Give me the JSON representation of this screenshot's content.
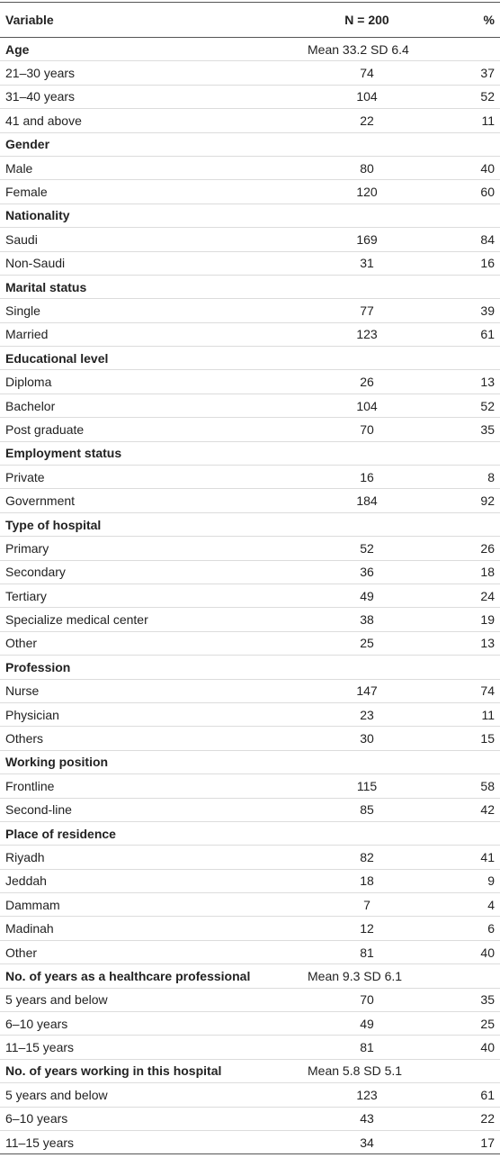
{
  "table": {
    "header": [
      "Variable",
      "N = 200",
      "%"
    ],
    "groups": [
      {
        "label": "Age",
        "summary": "Mean 33.2 SD 6.4",
        "rows": [
          [
            "21–30 years",
            74,
            37
          ],
          [
            "31–40 years",
            104,
            52
          ],
          [
            "41 and above",
            22,
            11
          ]
        ]
      },
      {
        "label": "Gender",
        "rows": [
          [
            "Male",
            80,
            40
          ],
          [
            "Female",
            120,
            60
          ]
        ]
      },
      {
        "label": "Nationality",
        "rows": [
          [
            "Saudi",
            169,
            84
          ],
          [
            "Non-Saudi",
            31,
            16
          ]
        ]
      },
      {
        "label": "Marital status",
        "rows": [
          [
            "Single",
            77,
            39
          ],
          [
            "Married",
            123,
            61
          ]
        ]
      },
      {
        "label": "Educational level",
        "rows": [
          [
            "Diploma",
            26,
            13
          ],
          [
            "Bachelor",
            104,
            52
          ],
          [
            "Post graduate",
            70,
            35
          ]
        ]
      },
      {
        "label": "Employment status",
        "rows": [
          [
            "Private",
            16,
            8
          ],
          [
            "Government",
            184,
            92
          ]
        ]
      },
      {
        "label": "Type of hospital",
        "rows": [
          [
            "Primary",
            52,
            26
          ],
          [
            "Secondary",
            36,
            18
          ],
          [
            "Tertiary",
            49,
            24
          ],
          [
            "Specialize medical center",
            38,
            19
          ],
          [
            "Other",
            25,
            13
          ]
        ]
      },
      {
        "label": "Profession",
        "rows": [
          [
            "Nurse",
            147,
            74
          ],
          [
            "Physician",
            23,
            11
          ],
          [
            "Others",
            30,
            15
          ]
        ]
      },
      {
        "label": "Working position",
        "rows": [
          [
            "Frontline",
            115,
            58
          ],
          [
            "Second-line",
            85,
            42
          ]
        ]
      },
      {
        "label": "Place of residence",
        "rows": [
          [
            "Riyadh",
            82,
            41
          ],
          [
            "Jeddah",
            18,
            9
          ],
          [
            "Dammam",
            7,
            4
          ],
          [
            "Madinah",
            12,
            6
          ],
          [
            "Other",
            81,
            40
          ]
        ]
      },
      {
        "label": "No. of years as a healthcare professional",
        "summary": "Mean 9.3 SD 6.1",
        "rows": [
          [
            "5 years and below",
            70,
            35
          ],
          [
            "6–10 years",
            49,
            25
          ],
          [
            "11–15 years",
            81,
            40
          ]
        ]
      },
      {
        "label": "No. of years working in this hospital",
        "summary": "Mean 5.8 SD 5.1",
        "rows": [
          [
            "5 years and below",
            123,
            61
          ],
          [
            "6–10 years",
            43,
            22
          ],
          [
            "11–15 years",
            34,
            17
          ]
        ]
      }
    ]
  }
}
